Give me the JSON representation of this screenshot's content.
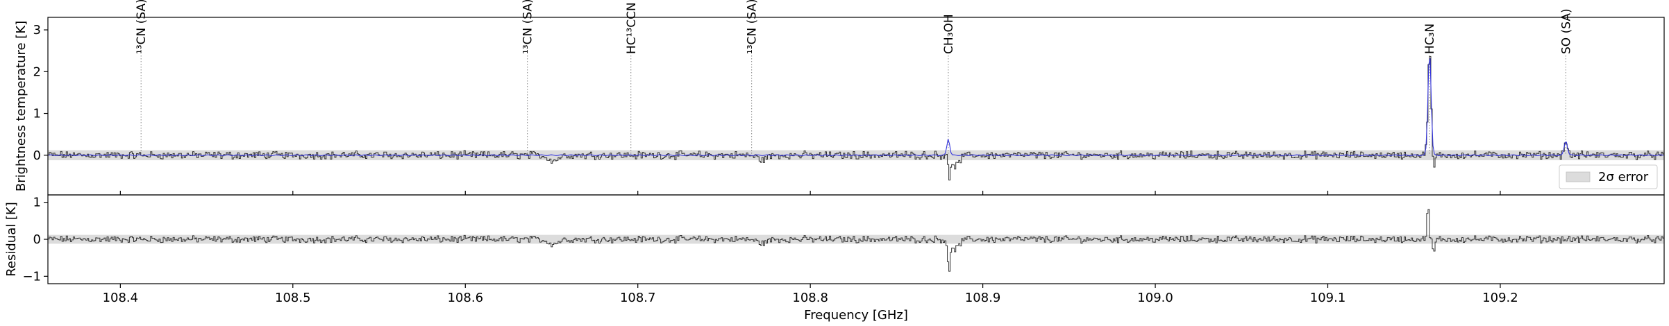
{
  "chart_data": [
    {
      "type": "line",
      "panel": "spectrum",
      "xlabel": "Frequency [GHz]",
      "ylabel": "Brightness temperature [K]",
      "xlim": [
        108.358,
        109.295
      ],
      "ylim": [
        -0.95,
        3.3
      ],
      "yticks": [
        0,
        1,
        2,
        3
      ],
      "xticks": [
        108.4,
        108.5,
        108.6,
        108.7,
        108.8,
        108.9,
        109.0,
        109.1,
        109.2
      ],
      "noise_band": {
        "label": "2σ error",
        "lower": -0.12,
        "upper": 0.12,
        "color": "#dcdcdc"
      },
      "legend": {
        "position": "lower-right",
        "entries": [
          "2σ error"
        ]
      },
      "line_markers": [
        {
          "freq": 108.412,
          "label": "¹³CN (SA)"
        },
        {
          "freq": 108.636,
          "label": "¹³CN (SA)"
        },
        {
          "freq": 108.696,
          "label": "HC¹³CCN"
        },
        {
          "freq": 108.766,
          "label": "¹³CN (SA)"
        },
        {
          "freq": 108.88,
          "label": "CH₃OH"
        },
        {
          "freq": 109.159,
          "label": "HC₃N"
        },
        {
          "freq": 109.238,
          "label": "SO (SA)"
        }
      ],
      "series": [
        {
          "role": "observed",
          "color": "#333333"
        },
        {
          "role": "model",
          "color": "#3333dd"
        }
      ],
      "features": {
        "model_peaks": [
          {
            "freq": 108.88,
            "peak": 0.4,
            "width": 0.0008
          },
          {
            "freq": 109.159,
            "peak": 2.5,
            "width": 0.0009
          },
          {
            "freq": 109.238,
            "peak": 0.35,
            "width": 0.0009
          }
        ],
        "observed_peaks": [
          {
            "freq": 108.88,
            "peak": 0.4
          },
          {
            "freq": 109.159,
            "peak": 2.5
          },
          {
            "freq": 109.238,
            "peak": 0.35
          }
        ],
        "absorption": [
          {
            "freq": 108.8805,
            "depth": -0.8
          },
          {
            "freq": 109.1615,
            "depth": -0.35
          }
        ]
      }
    },
    {
      "type": "line",
      "panel": "residual",
      "xlabel": "Frequency [GHz]",
      "ylabel": "Residual [K]",
      "xlim": [
        108.358,
        109.295
      ],
      "ylim": [
        -1.2,
        1.2
      ],
      "yticks": [
        -1,
        0,
        1
      ],
      "noise_band": {
        "lower": -0.12,
        "upper": 0.12,
        "color": "#dcdcdc"
      },
      "features": {
        "absorption": [
          {
            "freq": 108.8805,
            "depth": -0.9
          },
          {
            "freq": 109.1615,
            "depth": -0.6
          }
        ],
        "emission": [
          {
            "freq": 109.158,
            "peak": 0.85
          }
        ]
      }
    }
  ]
}
